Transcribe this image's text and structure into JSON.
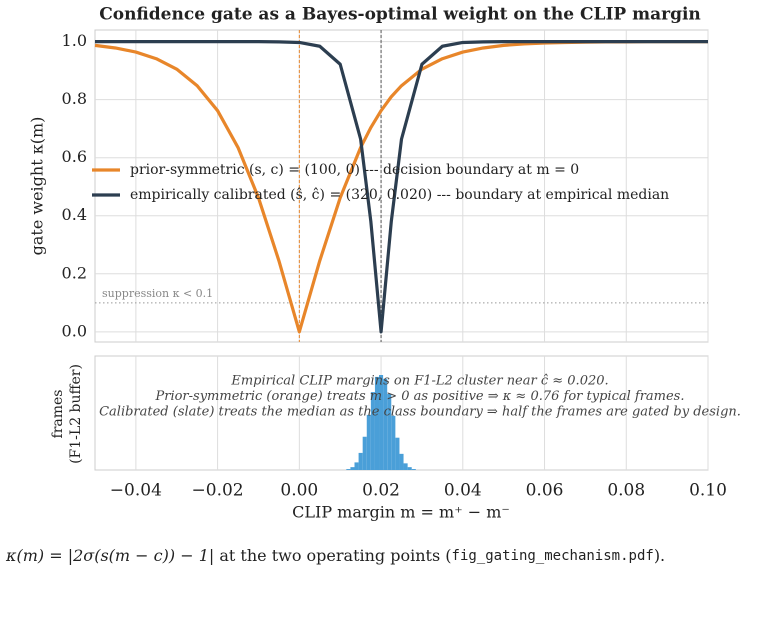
{
  "chart_data": [
    {
      "type": "line",
      "title": "Confidence gate as a Bayes-optimal weight on the CLIP margin",
      "ylabel": "gate weight  κ(m)",
      "x": [
        -0.05,
        -0.045,
        -0.04,
        -0.035,
        -0.03,
        -0.025,
        -0.02,
        -0.015,
        -0.01,
        -0.005,
        0,
        0.005,
        0.01,
        0.015,
        0.0175,
        0.02,
        0.0225,
        0.025,
        0.03,
        0.035,
        0.04,
        0.045,
        0.05,
        0.055,
        0.06,
        0.065,
        0.07,
        0.075,
        0.08,
        0.085,
        0.09,
        0.095,
        0.1
      ],
      "series": [
        {
          "name": "prior-symmetric  (s, c) = (100, 0)  --- decision boundary at m = 0",
          "color": "#e8862a",
          "values": [
            0.987,
            0.978,
            0.964,
            0.941,
            0.905,
            0.848,
            0.762,
            0.635,
            0.462,
            0.245,
            0,
            0.245,
            0.462,
            0.635,
            0.704,
            0.762,
            0.81,
            0.848,
            0.905,
            0.941,
            0.964,
            0.978,
            0.987,
            0.992,
            0.995,
            0.997,
            0.998,
            0.999,
            0.999,
            1.0,
            1.0,
            1.0,
            1.0
          ]
        },
        {
          "name": "empirically calibrated  (ŝ, ĉ) = (320, 0.020)  --- boundary at empirical median",
          "color": "#2c3e50",
          "values": [
            1.0,
            1.0,
            1.0,
            1.0,
            1.0,
            1.0,
            1.0,
            1.0,
            1.0,
            0.999,
            0.997,
            0.984,
            0.922,
            0.664,
            0.38,
            0,
            0.38,
            0.664,
            0.922,
            0.984,
            0.997,
            0.999,
            1.0,
            1.0,
            1.0,
            1.0,
            1.0,
            1.0,
            1.0,
            1.0,
            1.0,
            1.0,
            1.0
          ]
        }
      ],
      "vlines": [
        {
          "x": 0,
          "color": "#e8862a"
        },
        {
          "x": 0.02,
          "color": "#555555"
        }
      ],
      "threshold": {
        "y": 0.1,
        "label": "suppression  κ < 0.1"
      },
      "xlim": [
        -0.05,
        0.1
      ],
      "ylim": [
        -0.035,
        1.04
      ],
      "yticks": [
        {
          "value": 0,
          "label": "0.0"
        },
        0.2,
        0.4,
        0.6,
        0.8,
        {
          "value": 1,
          "label": "1.0"
        }
      ],
      "grid": true
    },
    {
      "type": "histogram",
      "ylabel": [
        "frames",
        "(F1-L2 buffer)"
      ],
      "xlabel": "CLIP margin  m = m⁺ − m⁻",
      "annotations": [
        "Empirical CLIP margins on F1-L2 cluster near ĉ ≈ 0.020.",
        "Prior-symmetric (orange) treats m > 0 as positive  ⇒  κ ≈ 0.76 for typical frames.",
        "Calibrated (slate) treats the median as the class boundary  ⇒  half the frames are gated by design."
      ],
      "bins": [
        0.0115,
        0.0125,
        0.0135,
        0.0145,
        0.0155,
        0.0165,
        0.0175,
        0.0185,
        0.0195,
        0.0205,
        0.0215,
        0.0225,
        0.0235,
        0.0245,
        0.0255,
        0.0265,
        0.0275,
        0.0285
      ],
      "counts": [
        1,
        3,
        8,
        18,
        35,
        58,
        82,
        98,
        100,
        96,
        80,
        57,
        34,
        17,
        7,
        3,
        1
      ],
      "color": "#4a9fd8",
      "xlim": [
        -0.05,
        0.1
      ],
      "ylim": [
        0,
        120
      ],
      "xticks": [
        {
          "value": -0.04,
          "label": "−0.04"
        },
        {
          "value": -0.02,
          "label": "−0.02"
        },
        {
          "value": 0,
          "label": "0.00"
        },
        0.02,
        0.04,
        0.06,
        0.08,
        {
          "value": 0.1,
          "label": "0.10"
        }
      ],
      "grid": true
    }
  ],
  "caption": [
    "κ(m) = |2σ(s(m − c)) − 1|",
    " at the two operating points (",
    "fig_gating_mechanism.pdf",
    ")."
  ]
}
